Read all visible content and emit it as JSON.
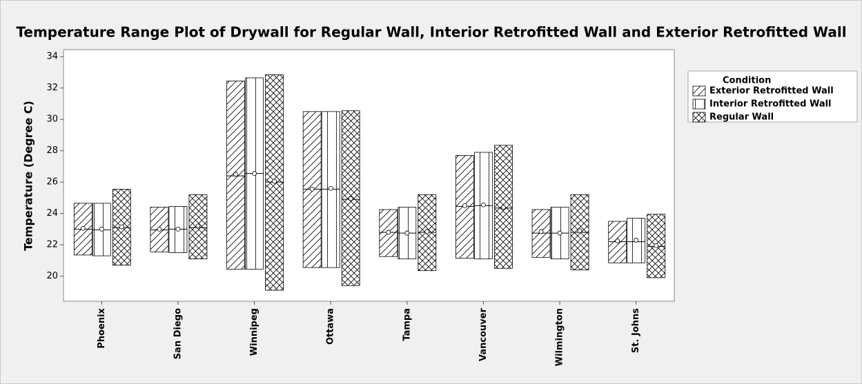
{
  "chart_data": {
    "type": "range",
    "title": "Temperature Range Plot of Drywall for Regular Wall, Interior Retrofitted Wall and Exterior Retrofitted Wall",
    "y_label": "Temperature (Degree C)",
    "categories": [
      "Phoenix",
      "San Diego",
      "Winnipeg",
      "Ottawa",
      "Tampa",
      "Vancouver",
      "Wilmington",
      "St. Johns"
    ],
    "legend_title": "Condition",
    "legend_position": "right",
    "series": [
      {
        "name": "Exterior Retrofitted Wall",
        "pattern": "diagonal",
        "color": "#000000",
        "low": [
          21.35,
          21.55,
          20.45,
          20.55,
          21.25,
          21.15,
          21.2,
          20.85
        ],
        "high": [
          24.65,
          24.4,
          32.45,
          30.5,
          24.25,
          27.7,
          24.25,
          23.5
        ],
        "median": [
          23.0,
          22.95,
          26.4,
          25.55,
          22.8,
          24.45,
          22.75,
          22.2
        ],
        "mean": [
          23.05,
          23.0,
          26.5,
          25.55,
          22.8,
          24.5,
          22.85,
          22.25
        ]
      },
      {
        "name": "Interior Retrofitted Wall",
        "pattern": "vertical",
        "color": "#000000",
        "low": [
          21.3,
          21.5,
          20.45,
          20.55,
          21.1,
          21.1,
          21.1,
          20.85
        ],
        "high": [
          24.65,
          24.45,
          32.65,
          30.5,
          24.4,
          27.9,
          24.4,
          23.7
        ],
        "median": [
          22.95,
          23.0,
          26.55,
          25.55,
          22.75,
          24.5,
          22.75,
          22.2
        ],
        "mean": [
          23.0,
          23.0,
          26.55,
          25.6,
          22.75,
          24.55,
          22.75,
          22.3
        ]
      },
      {
        "name": "Regular Wall",
        "pattern": "cross",
        "color": "#000000",
        "low": [
          20.7,
          21.1,
          19.1,
          19.4,
          20.35,
          20.5,
          20.4,
          19.9
        ],
        "high": [
          25.55,
          25.2,
          32.85,
          30.55,
          25.2,
          28.35,
          25.2,
          23.95
        ],
        "median": [
          23.1,
          23.1,
          26.0,
          24.9,
          22.8,
          24.35,
          22.8,
          21.9
        ],
        "mean": [
          23.15,
          23.2,
          26.05,
          24.95,
          22.85,
          24.4,
          22.9,
          21.95
        ]
      }
    ],
    "ylim": [
      18.4,
      34.45
    ],
    "yticks": [
      20,
      22,
      24,
      26,
      28,
      30,
      32,
      34
    ],
    "grid": false
  }
}
